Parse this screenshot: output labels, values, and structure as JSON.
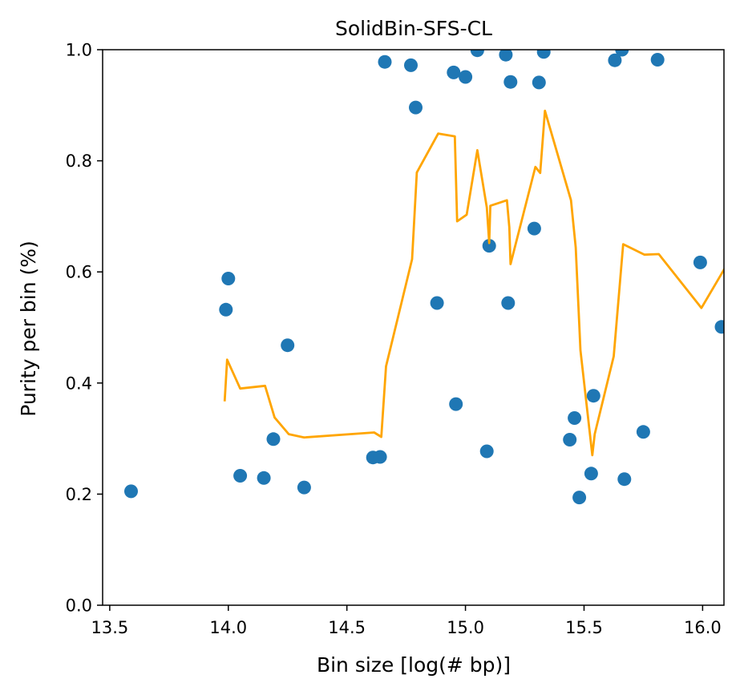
{
  "chart_data": {
    "type": "scatter",
    "title": "SolidBin-SFS-CL",
    "xlabel": "Bin size [log(# bp)]",
    "ylabel": "Purity per bin (%)",
    "xlim": [
      13.47,
      16.09
    ],
    "ylim": [
      0.0,
      1.0
    ],
    "xticks": [
      13.5,
      14.0,
      14.5,
      15.0,
      15.5,
      16.0
    ],
    "xtick_labels": [
      "13.5",
      "14.0",
      "14.5",
      "15.0",
      "15.5",
      "16.0"
    ],
    "yticks": [
      0.0,
      0.2,
      0.4,
      0.6,
      0.8,
      1.0
    ],
    "ytick_labels": [
      "0.0",
      "0.2",
      "0.4",
      "0.6",
      "0.8",
      "1.0"
    ],
    "grid": false,
    "scatter_color": "#1f77b4",
    "line_color": "#ffa500",
    "points": [
      {
        "x": 13.59,
        "y": 0.205
      },
      {
        "x": 13.99,
        "y": 0.532
      },
      {
        "x": 14.0,
        "y": 0.588
      },
      {
        "x": 14.05,
        "y": 0.233
      },
      {
        "x": 14.15,
        "y": 0.229
      },
      {
        "x": 14.19,
        "y": 0.299
      },
      {
        "x": 14.25,
        "y": 0.468
      },
      {
        "x": 14.32,
        "y": 0.212
      },
      {
        "x": 14.61,
        "y": 0.266
      },
      {
        "x": 14.64,
        "y": 0.267
      },
      {
        "x": 14.66,
        "y": 0.978
      },
      {
        "x": 14.77,
        "y": 0.972
      },
      {
        "x": 14.79,
        "y": 0.896
      },
      {
        "x": 14.88,
        "y": 0.544
      },
      {
        "x": 14.95,
        "y": 0.959
      },
      {
        "x": 14.96,
        "y": 0.362
      },
      {
        "x": 15.0,
        "y": 0.951
      },
      {
        "x": 15.05,
        "y": 0.999
      },
      {
        "x": 15.09,
        "y": 0.277
      },
      {
        "x": 15.1,
        "y": 0.647
      },
      {
        "x": 15.17,
        "y": 0.991
      },
      {
        "x": 15.18,
        "y": 0.544
      },
      {
        "x": 15.19,
        "y": 0.942
      },
      {
        "x": 15.29,
        "y": 0.678
      },
      {
        "x": 15.31,
        "y": 0.941
      },
      {
        "x": 15.33,
        "y": 0.996
      },
      {
        "x": 15.44,
        "y": 0.298
      },
      {
        "x": 15.46,
        "y": 0.337
      },
      {
        "x": 15.48,
        "y": 0.194
      },
      {
        "x": 15.53,
        "y": 0.237
      },
      {
        "x": 15.54,
        "y": 0.377
      },
      {
        "x": 15.63,
        "y": 0.981
      },
      {
        "x": 15.66,
        "y": 1.0
      },
      {
        "x": 15.67,
        "y": 0.227
      },
      {
        "x": 15.75,
        "y": 0.312
      },
      {
        "x": 15.81,
        "y": 0.982
      },
      {
        "x": 15.99,
        "y": 0.617
      },
      {
        "x": 16.08,
        "y": 0.501
      }
    ],
    "line": {
      "x": [
        13.985,
        13.995,
        14.05,
        14.155,
        14.195,
        14.255,
        14.32,
        14.615,
        14.645,
        14.665,
        14.775,
        14.795,
        14.885,
        14.955,
        14.965,
        15.005,
        15.05,
        15.09,
        15.1,
        15.105,
        15.175,
        15.185,
        15.19,
        15.295,
        15.315,
        15.335,
        15.445,
        15.465,
        15.485,
        15.535,
        15.545,
        15.625,
        15.665,
        15.755,
        15.815,
        15.995,
        16.09
      ],
      "y": [
        0.369,
        0.442,
        0.39,
        0.395,
        0.338,
        0.308,
        0.302,
        0.311,
        0.303,
        0.43,
        0.623,
        0.779,
        0.849,
        0.844,
        0.691,
        0.703,
        0.819,
        0.716,
        0.652,
        0.719,
        0.729,
        0.68,
        0.614,
        0.789,
        0.778,
        0.89,
        0.729,
        0.644,
        0.459,
        0.27,
        0.308,
        0.448,
        0.65,
        0.631,
        0.632,
        0.535,
        0.604
      ]
    }
  }
}
